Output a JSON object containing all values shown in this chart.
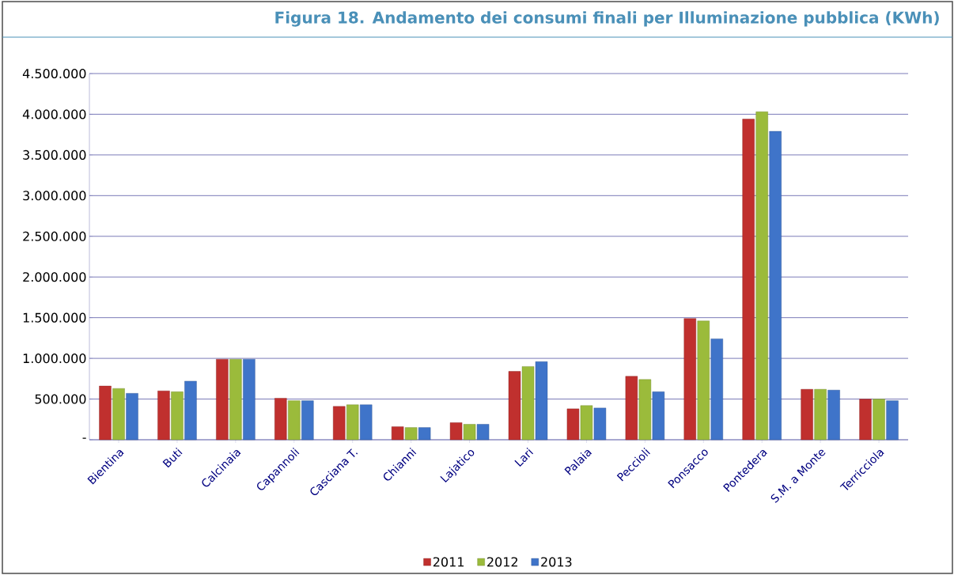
{
  "chart_data": {
    "type": "bar",
    "title": "Figura 18. Andamento dei consumi finali per Illuminazione pubblica (KWh)",
    "categories": [
      "Bientina",
      "Buti",
      "Calcinaia",
      "Capannoli",
      "Casciana T.",
      "Chianni",
      "Lajatico",
      "Lari",
      "Palaia",
      "Peccioli",
      "Ponsacco",
      "Pontedera",
      "S.M. a Monte",
      "Terricciola"
    ],
    "series": [
      {
        "name": "2011",
        "color": "#c0302e",
        "values": [
          660000,
          600000,
          990000,
          510000,
          410000,
          160000,
          210000,
          840000,
          380000,
          780000,
          1490000,
          3940000,
          620000,
          500000
        ]
      },
      {
        "name": "2012",
        "color": "#9bbb3b",
        "values": [
          630000,
          590000,
          990000,
          480000,
          430000,
          150000,
          190000,
          900000,
          420000,
          740000,
          1460000,
          4030000,
          620000,
          500000
        ]
      },
      {
        "name": "2013",
        "color": "#3f74c9",
        "values": [
          570000,
          720000,
          990000,
          480000,
          430000,
          150000,
          190000,
          960000,
          390000,
          590000,
          1240000,
          3790000,
          610000,
          480000
        ]
      }
    ],
    "ylim": [
      0,
      4500000
    ],
    "yticks": [
      {
        "value": 0,
        "label": "-"
      },
      {
        "value": 500000,
        "label": "500.000"
      },
      {
        "value": 1000000,
        "label": "1.000.000"
      },
      {
        "value": 1500000,
        "label": "1.500.000"
      },
      {
        "value": 2000000,
        "label": "2.000.000"
      },
      {
        "value": 2500000,
        "label": "2.500.000"
      },
      {
        "value": 3000000,
        "label": "3.000.000"
      },
      {
        "value": 3500000,
        "label": "3.500.000"
      },
      {
        "value": 4000000,
        "label": "4.000.000"
      },
      {
        "value": 4500000,
        "label": "4.500.000"
      }
    ],
    "grid": "y",
    "legend": "bottom"
  }
}
